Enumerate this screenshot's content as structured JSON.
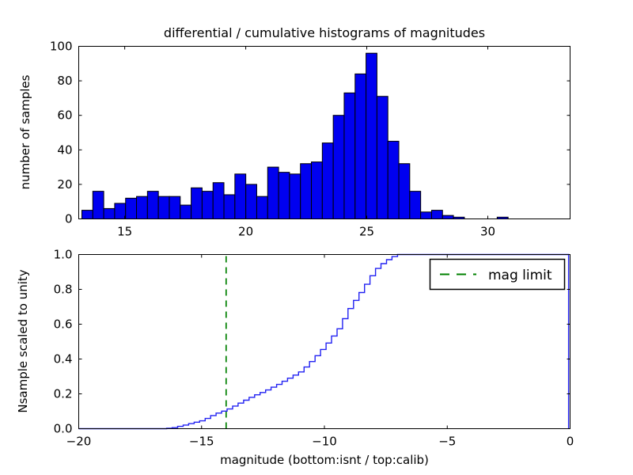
{
  "figure": {
    "title": "differential / cumulative histograms of magnitudes",
    "background": "#ffffff"
  },
  "chart_data": [
    {
      "type": "bar",
      "subtype": "histogram",
      "title": "differential / cumulative histograms of magnitudes",
      "ylabel": "number of samples",
      "xlabel": "",
      "xlim": [
        13.1,
        33.4
      ],
      "ylim": [
        0,
        100
      ],
      "xticks": [
        15,
        20,
        25,
        30
      ],
      "yticks": [
        0,
        20,
        40,
        60,
        80,
        100
      ],
      "grid": false,
      "bin_start": 13.23,
      "bin_width": 0.4515,
      "values": [
        5,
        16,
        6,
        9,
        12,
        13,
        16,
        13,
        13,
        8,
        18,
        16,
        21,
        14,
        26,
        20,
        13,
        30,
        27,
        26,
        32,
        33,
        44,
        60,
        73,
        84,
        96,
        71,
        45,
        32,
        16,
        4,
        5,
        2,
        1,
        0,
        0,
        0,
        1,
        0,
        0,
        0,
        0,
        0
      ],
      "bar_fill": "#0000f0",
      "bar_edge": "#000000"
    },
    {
      "type": "line",
      "subtype": "cumulative-step",
      "ylabel": "Nsample scaled to unity",
      "xlabel": "magnitude (bottom:isnt / top:calib)",
      "xlim": [
        -20,
        0
      ],
      "ylim": [
        0.0,
        1.0
      ],
      "xticks": [
        -20,
        -15,
        -10,
        -5,
        0
      ],
      "yticks": [
        0.0,
        0.2,
        0.4,
        0.6,
        0.8,
        1.0
      ],
      "grid": false,
      "step": 0.2237,
      "color": "#2222f2",
      "curve_points": [
        [
          -20.0,
          0.0
        ],
        [
          -16.6,
          0.0
        ],
        [
          -16.2,
          0.006
        ],
        [
          -16.0,
          0.012
        ],
        [
          -15.5,
          0.03
        ],
        [
          -15.0,
          0.048
        ],
        [
          -14.5,
          0.085
        ],
        [
          -14.0,
          0.11
        ],
        [
          -13.5,
          0.148
        ],
        [
          -13.0,
          0.185
        ],
        [
          -12.5,
          0.215
        ],
        [
          -12.0,
          0.25
        ],
        [
          -11.5,
          0.29
        ],
        [
          -11.0,
          0.33
        ],
        [
          -10.5,
          0.4
        ],
        [
          -10.0,
          0.48
        ],
        [
          -9.5,
          0.57
        ],
        [
          -9.0,
          0.7
        ],
        [
          -8.5,
          0.8
        ],
        [
          -8.0,
          0.91
        ],
        [
          -7.6,
          0.96
        ],
        [
          -7.3,
          0.985
        ],
        [
          -7.05,
          1.0
        ],
        [
          -0.08,
          1.0
        ]
      ],
      "vline": {
        "x": -14,
        "color": "#008000",
        "style": "dashed",
        "label": "mag limit"
      },
      "legend": {
        "label": "mag limit",
        "position": "upper right"
      }
    }
  ],
  "colors": {
    "spine": "#000000",
    "bar_fill": "#0000f0",
    "bar_edge": "#000000",
    "curve_blue": "#2222f2",
    "vline_green": "#008000",
    "text": "#000000",
    "background": "#ffffff"
  }
}
